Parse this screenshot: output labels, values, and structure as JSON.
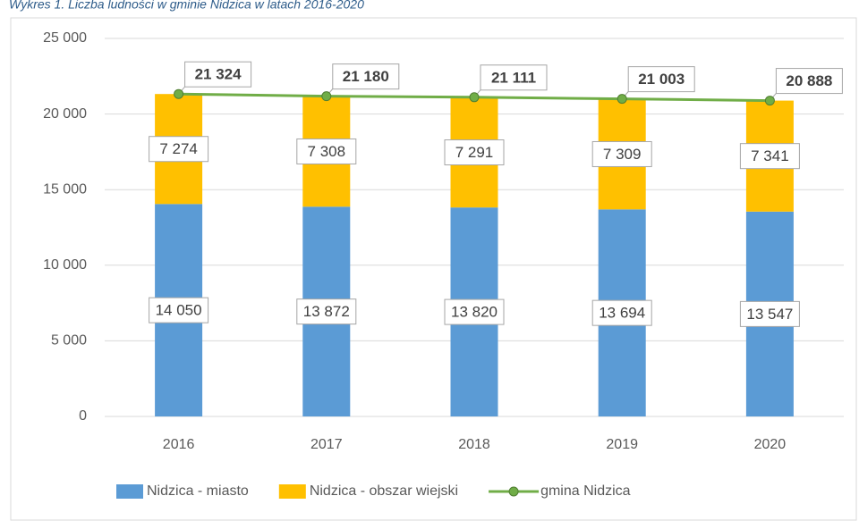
{
  "chart_data": {
    "type": "bar",
    "stacked": true,
    "title": "Wykres 1. Liczba ludności w gminie Nidzica w latach 2016-2020",
    "categories": [
      "2016",
      "2017",
      "2018",
      "2019",
      "2020"
    ],
    "series": [
      {
        "name": "Nidzica - miasto",
        "color": "#5b9bd5",
        "values": [
          14050,
          13872,
          13820,
          13694,
          13547
        ],
        "value_labels": [
          "14 050",
          "13 872",
          "13 820",
          "13 694",
          "13 547"
        ]
      },
      {
        "name": "Nidzica - obszar wiejski",
        "color": "#ffc000",
        "values": [
          7274,
          7308,
          7291,
          7309,
          7341
        ],
        "value_labels": [
          "7 274",
          "7 308",
          "7 291",
          "7 309",
          "7 341"
        ]
      },
      {
        "name": "gmina Nidzica",
        "type": "line",
        "color": "#70ad47",
        "values": [
          21324,
          21180,
          21111,
          21003,
          20888
        ],
        "value_labels": [
          "21 324",
          "21 180",
          "21 111",
          "21 003",
          "20 888"
        ]
      }
    ],
    "ylim": [
      0,
      25000
    ],
    "yticks": [
      0,
      {
        "value": 5000,
        "label": "5 000"
      },
      {
        "value": 10000,
        "label": "10 000"
      },
      {
        "value": 15000,
        "label": "15 000"
      },
      {
        "value": 20000,
        "label": "20 000"
      },
      {
        "value": 25000,
        "label": "25 000"
      }
    ],
    "grid": true,
    "legend": "bottom"
  }
}
